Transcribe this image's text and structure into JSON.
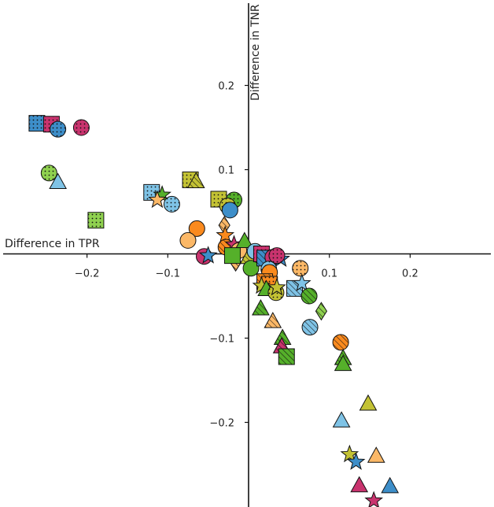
{
  "chart_data": {
    "type": "scatter",
    "xlabel": "Difference in TPR",
    "ylabel": "Difference in TNR",
    "xlim": [
      -0.295,
      0.293
    ],
    "ylim": [
      -0.3,
      0.3
    ],
    "grid": false,
    "xticks": [
      -0.2,
      -0.1,
      0.1,
      0.2
    ],
    "yticks": [
      0.2,
      0.1,
      -0.1,
      -0.2
    ],
    "xtick_labels": [
      "−0.2",
      "−0.1",
      "0.1",
      "0.2"
    ],
    "ytick_labels": [
      "0.2",
      "0.1",
      "−0.1",
      "−0.2"
    ],
    "colors": {
      "blue": "#3d8ec9",
      "lightblue": "#7fc3e6",
      "magenta": "#c9336e",
      "green": "#55b02a",
      "lightgreen": "#8fd14f",
      "olive": "#c3c234",
      "orange": "#fa8a1e",
      "lightorange": "#fbb867"
    },
    "points": [
      {
        "x": -0.262,
        "y": 0.155,
        "marker": "square",
        "color": "blue",
        "hatch": "dots"
      },
      {
        "x": -0.244,
        "y": 0.154,
        "marker": "square",
        "color": "magenta",
        "hatch": "dots"
      },
      {
        "x": -0.236,
        "y": 0.148,
        "marker": "circle",
        "color": "blue",
        "hatch": "dots"
      },
      {
        "x": -0.207,
        "y": 0.15,
        "marker": "circle",
        "color": "magenta",
        "hatch": "dots"
      },
      {
        "x": -0.247,
        "y": 0.096,
        "marker": "circle",
        "color": "lightgreen",
        "hatch": "dots"
      },
      {
        "x": -0.236,
        "y": 0.085,
        "marker": "triangle",
        "color": "lightblue",
        "hatch": "none"
      },
      {
        "x": -0.189,
        "y": 0.04,
        "marker": "square",
        "color": "lightgreen",
        "hatch": "dots"
      },
      {
        "x": -0.12,
        "y": 0.073,
        "marker": "square",
        "color": "lightblue",
        "hatch": "dots"
      },
      {
        "x": -0.107,
        "y": 0.07,
        "marker": "star",
        "color": "green",
        "hatch": "none"
      },
      {
        "x": -0.113,
        "y": 0.064,
        "marker": "star",
        "color": "lightorange",
        "hatch": "none"
      },
      {
        "x": -0.095,
        "y": 0.059,
        "marker": "circle",
        "color": "lightblue",
        "hatch": "dots"
      },
      {
        "x": -0.072,
        "y": 0.088,
        "marker": "square",
        "color": "olive",
        "hatch": "dots"
      },
      {
        "x": -0.065,
        "y": 0.086,
        "marker": "triangle",
        "color": "olive",
        "hatch": "stripes"
      },
      {
        "x": -0.037,
        "y": 0.065,
        "marker": "square",
        "color": "olive",
        "hatch": "dots"
      },
      {
        "x": -0.018,
        "y": 0.064,
        "marker": "circle",
        "color": "green",
        "hatch": "dots"
      },
      {
        "x": -0.026,
        "y": 0.057,
        "marker": "circle",
        "color": "olive",
        "hatch": "dots"
      },
      {
        "x": -0.023,
        "y": 0.052,
        "marker": "circle",
        "color": "blue",
        "hatch": "none"
      },
      {
        "x": -0.064,
        "y": 0.03,
        "marker": "circle",
        "color": "orange",
        "hatch": "none"
      },
      {
        "x": -0.075,
        "y": 0.016,
        "marker": "circle",
        "color": "lightorange",
        "hatch": "none"
      },
      {
        "x": -0.03,
        "y": 0.034,
        "marker": "diamond",
        "color": "lightorange",
        "hatch": "stripes"
      },
      {
        "x": -0.029,
        "y": 0.022,
        "marker": "star",
        "color": "orange",
        "hatch": "none"
      },
      {
        "x": -0.055,
        "y": -0.003,
        "marker": "circle",
        "color": "magenta",
        "hatch": "none"
      },
      {
        "x": -0.05,
        "y": -0.002,
        "marker": "star",
        "color": "blue",
        "hatch": "none"
      },
      {
        "x": -0.028,
        "y": 0.008,
        "marker": "circle",
        "color": "orange",
        "hatch": "stripes"
      },
      {
        "x": -0.018,
        "y": 0.011,
        "marker": "star",
        "color": "magenta",
        "hatch": "none"
      },
      {
        "x": -0.012,
        "y": 0.004,
        "marker": "circle",
        "color": "lightorange",
        "hatch": "none"
      },
      {
        "x": -0.016,
        "y": -0.01,
        "marker": "diamond",
        "color": "lightorange",
        "hatch": "stripes"
      },
      {
        "x": -0.02,
        "y": -0.002,
        "marker": "square",
        "color": "green",
        "hatch": "none"
      },
      {
        "x": -0.005,
        "y": 0.015,
        "marker": "triangle",
        "color": "green",
        "hatch": "none"
      },
      {
        "x": 0.0,
        "y": -0.004,
        "marker": "triangle",
        "color": "olive",
        "hatch": "stripes"
      },
      {
        "x": 0.003,
        "y": -0.017,
        "marker": "circle",
        "color": "green",
        "hatch": "none"
      },
      {
        "x": 0.008,
        "y": 0.003,
        "marker": "circle",
        "color": "lightblue",
        "hatch": "none"
      },
      {
        "x": 0.016,
        "y": 0.0,
        "marker": "square",
        "color": "magenta",
        "hatch": "dots"
      },
      {
        "x": 0.02,
        "y": -0.005,
        "marker": "square",
        "color": "blue",
        "hatch": "stripes"
      },
      {
        "x": 0.03,
        "y": -0.004,
        "marker": "circle",
        "color": "magenta",
        "hatch": "none"
      },
      {
        "x": 0.04,
        "y": -0.006,
        "marker": "star",
        "color": "blue",
        "hatch": "none"
      },
      {
        "x": 0.035,
        "y": -0.002,
        "marker": "circle",
        "color": "magenta",
        "hatch": "dots"
      },
      {
        "x": 0.025,
        "y": -0.018,
        "marker": "circle",
        "color": "lightblue",
        "hatch": "dots"
      },
      {
        "x": 0.026,
        "y": -0.022,
        "marker": "circle",
        "color": "orange",
        "hatch": "none"
      },
      {
        "x": 0.02,
        "y": -0.033,
        "marker": "square",
        "color": "orange",
        "hatch": "stripes"
      },
      {
        "x": 0.026,
        "y": -0.036,
        "marker": "square",
        "color": "orange",
        "hatch": "dots"
      },
      {
        "x": 0.016,
        "y": -0.038,
        "marker": "star",
        "color": "olive",
        "hatch": "none"
      },
      {
        "x": 0.022,
        "y": -0.042,
        "marker": "triangle",
        "color": "green",
        "hatch": "none"
      },
      {
        "x": 0.034,
        "y": -0.046,
        "marker": "circle",
        "color": "olive",
        "hatch": "dots"
      },
      {
        "x": 0.035,
        "y": -0.04,
        "marker": "star",
        "color": "olive",
        "hatch": "none"
      },
      {
        "x": 0.064,
        "y": -0.017,
        "marker": "circle",
        "color": "lightorange",
        "hatch": "dots"
      },
      {
        "x": 0.057,
        "y": -0.041,
        "marker": "square",
        "color": "lightblue",
        "hatch": "stripes"
      },
      {
        "x": 0.066,
        "y": -0.035,
        "marker": "star",
        "color": "lightblue",
        "hatch": "none"
      },
      {
        "x": 0.075,
        "y": -0.05,
        "marker": "circle",
        "color": "green",
        "hatch": "stripes"
      },
      {
        "x": 0.015,
        "y": -0.065,
        "marker": "triangle",
        "color": "green",
        "hatch": "stripes"
      },
      {
        "x": 0.03,
        "y": -0.08,
        "marker": "triangle",
        "color": "lightorange",
        "hatch": "stripes"
      },
      {
        "x": 0.09,
        "y": -0.068,
        "marker": "diamond",
        "color": "lightgreen",
        "hatch": "stripes"
      },
      {
        "x": 0.076,
        "y": -0.087,
        "marker": "circle",
        "color": "lightblue",
        "hatch": "stripes"
      },
      {
        "x": 0.042,
        "y": -0.1,
        "marker": "triangle",
        "color": "green",
        "hatch": "stripes"
      },
      {
        "x": 0.041,
        "y": -0.11,
        "marker": "triangle",
        "color": "magenta",
        "hatch": "stripes"
      },
      {
        "x": 0.047,
        "y": -0.122,
        "marker": "square",
        "color": "green",
        "hatch": "stripes"
      },
      {
        "x": 0.114,
        "y": -0.105,
        "marker": "circle",
        "color": "orange",
        "hatch": "stripes"
      },
      {
        "x": 0.117,
        "y": -0.124,
        "marker": "triangle",
        "color": "green",
        "hatch": "stripes"
      },
      {
        "x": 0.117,
        "y": -0.131,
        "marker": "triangle",
        "color": "green",
        "hatch": "none"
      },
      {
        "x": 0.148,
        "y": -0.178,
        "marker": "triangle",
        "color": "olive",
        "hatch": "none"
      },
      {
        "x": 0.115,
        "y": -0.198,
        "marker": "triangle",
        "color": "lightblue",
        "hatch": "none"
      },
      {
        "x": 0.125,
        "y": -0.238,
        "marker": "star",
        "color": "olive",
        "hatch": "none"
      },
      {
        "x": 0.133,
        "y": -0.247,
        "marker": "star",
        "color": "blue",
        "hatch": "none"
      },
      {
        "x": 0.158,
        "y": -0.24,
        "marker": "triangle",
        "color": "lightorange",
        "hatch": "none"
      },
      {
        "x": 0.137,
        "y": -0.275,
        "marker": "triangle",
        "color": "magenta",
        "hatch": "none"
      },
      {
        "x": 0.175,
        "y": -0.276,
        "marker": "triangle",
        "color": "blue",
        "hatch": "none"
      },
      {
        "x": 0.155,
        "y": -0.293,
        "marker": "star",
        "color": "magenta",
        "hatch": "none"
      }
    ]
  }
}
